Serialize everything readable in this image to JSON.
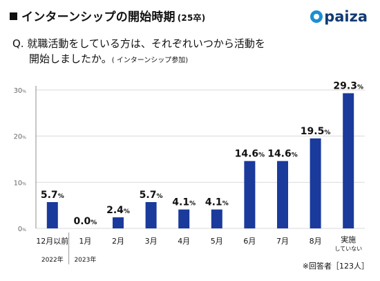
{
  "header": {
    "title": "インターンシップの開始時期",
    "subtitle": "(25卒)",
    "logo_text": "paiza"
  },
  "question": {
    "line1": "Q. 就職活動をしている方は、それぞれいつから活動を",
    "line2": "開始しましたか。",
    "note": "( インターンシップ参加)"
  },
  "footnote": "※回答者［123人］",
  "colors": {
    "bar": "#1a3a9c",
    "grid": "#d9d9d9",
    "axis": "#8c8c8c"
  },
  "chart_data": {
    "type": "bar",
    "categories": [
      "12月以前",
      "1月",
      "2月",
      "3月",
      "4月",
      "5月",
      "6月",
      "7月",
      "8月",
      "実施していない"
    ],
    "year_labels": [
      "2022年",
      "2023年"
    ],
    "values": [
      5.7,
      0.0,
      2.4,
      5.7,
      4.1,
      4.1,
      14.6,
      14.6,
      19.5,
      29.3
    ],
    "unit": "%",
    "ylim": [
      0,
      30
    ],
    "yticks": [
      0,
      10,
      20,
      30
    ],
    "grid": true
  }
}
